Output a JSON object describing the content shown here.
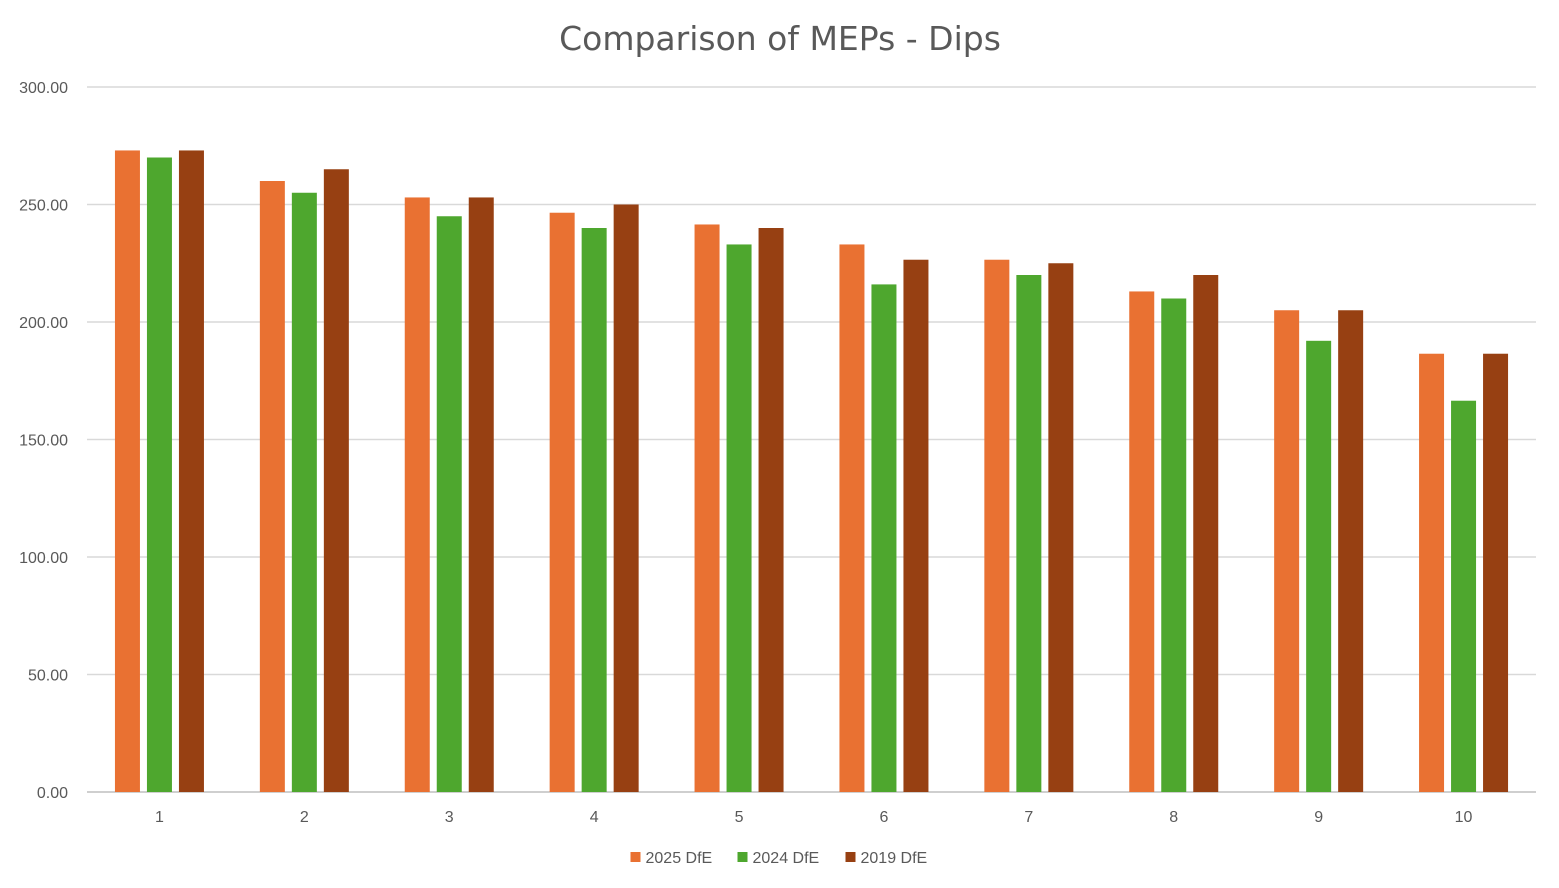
{
  "chart_data": {
    "type": "bar",
    "title": "Comparison of MEPs - Dips",
    "xlabel": "",
    "ylabel": "",
    "ylim": [
      0,
      300
    ],
    "yticks": [
      "0.00",
      "50.00",
      "100.00",
      "150.00",
      "200.00",
      "250.00",
      "300.00"
    ],
    "ytick_values": [
      0,
      50,
      100,
      150,
      200,
      250,
      300
    ],
    "categories": [
      "1",
      "2",
      "3",
      "4",
      "5",
      "6",
      "7",
      "8",
      "9",
      "10"
    ],
    "grid": true,
    "legend_position": "bottom",
    "series": [
      {
        "name": "2025 DfE",
        "color": "#E97132",
        "values": [
          273,
          260,
          253,
          246.5,
          241.5,
          233,
          226.5,
          213,
          205,
          186.5
        ]
      },
      {
        "name": "2024 DfE",
        "color": "#4EA72E",
        "values": [
          270,
          255,
          245,
          240,
          233,
          216,
          220,
          210,
          192,
          166.5
        ]
      },
      {
        "name": "2019 DfE",
        "color": "#974012",
        "values": [
          273,
          265,
          253,
          250,
          240,
          226.5,
          225,
          220,
          205,
          186.5
        ]
      }
    ]
  }
}
